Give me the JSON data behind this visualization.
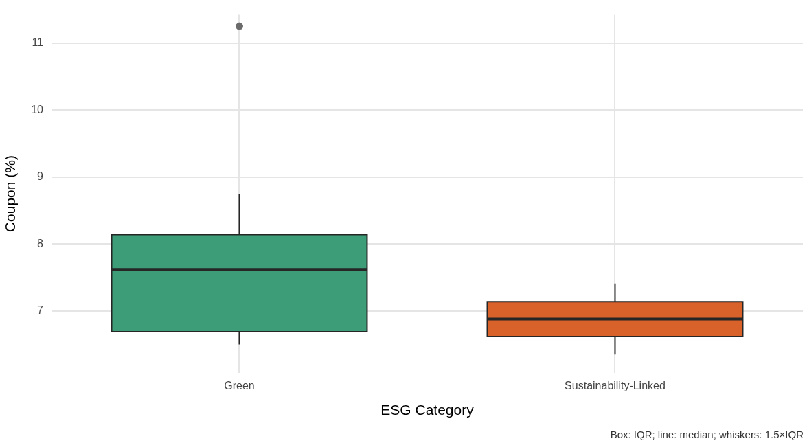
{
  "chart_data": {
    "type": "box",
    "xlabel": "ESG Category",
    "ylabel": "Coupon (%)",
    "categories": [
      "Green",
      "Sustainability-Linked"
    ],
    "series": [
      {
        "colors": [
          "#3c9d78",
          "#d8622a"
        ],
        "boxes": [
          {
            "low": 6.5,
            "q1": 6.69,
            "median": 7.62,
            "q3": 8.14,
            "high": 8.75,
            "outliers": [
              11.25
            ]
          },
          {
            "low": 6.35,
            "q1": 6.62,
            "median": 6.88,
            "q3": 7.14,
            "high": 7.41
          }
        ]
      }
    ],
    "ylim": [
      6.08,
      11.42
    ],
    "yticks": [
      7,
      8,
      9,
      10,
      11
    ],
    "grid": true,
    "legend": false,
    "annotations": [
      "Box: IQR; line: median; whiskers: 1.5×IQR"
    ]
  }
}
